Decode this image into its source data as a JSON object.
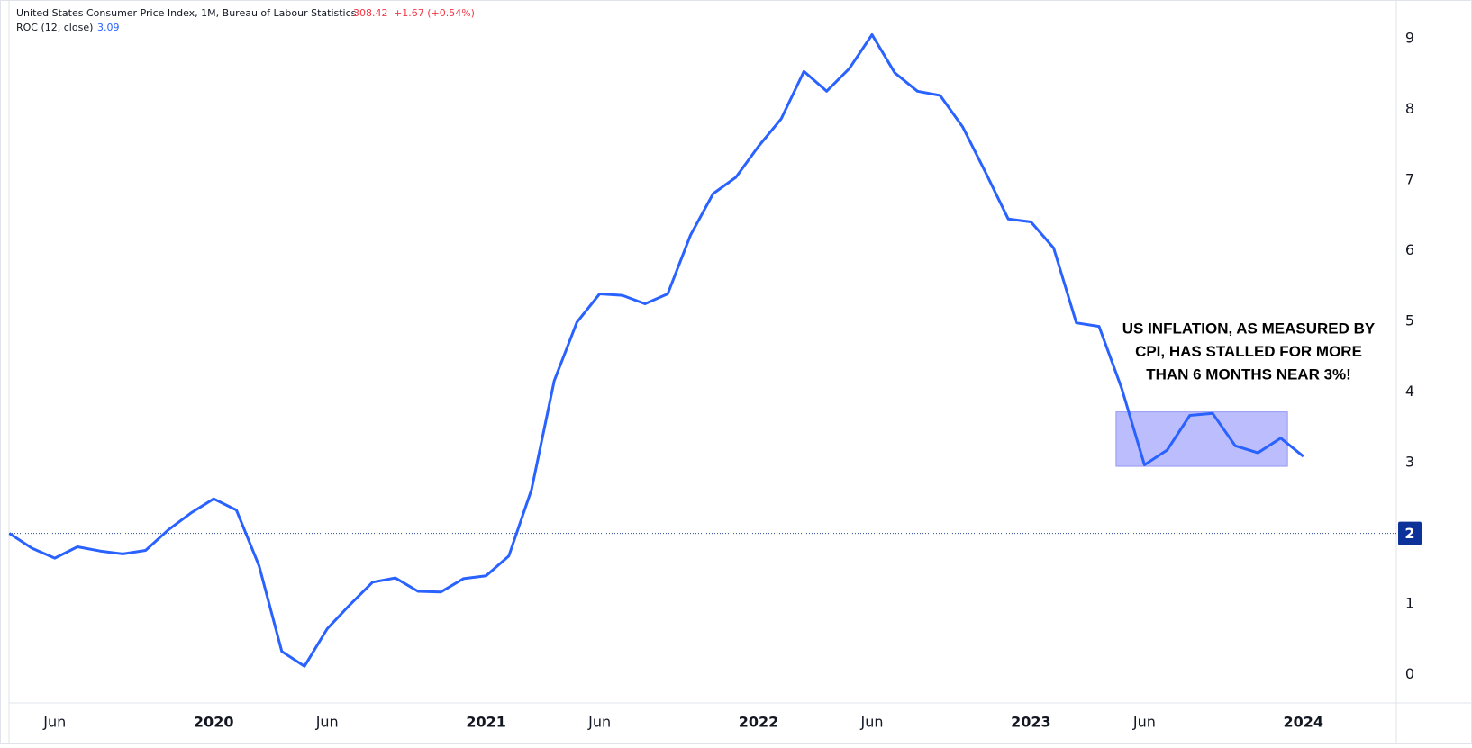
{
  "chart_data": {
    "type": "line",
    "title": "United States Consumer Price Index, 1M, Bureau of Labour Statistics",
    "last_price": "308.42",
    "price_change": "+1.67 (+0.54%)",
    "indicator": "ROC (12, close)",
    "indicator_value": "3.09",
    "annotation": [
      "US INFLATION, AS MEASURED BY",
      "CPI, HAS STALLED FOR MORE",
      "THAN 6 MONTHS NEAR 3%!"
    ],
    "categories": [
      null,
      null,
      "Jun",
      null,
      null,
      null,
      null,
      null,
      null,
      "2020",
      null,
      null,
      null,
      null,
      "Jun",
      null,
      null,
      null,
      null,
      null,
      null,
      "2021",
      null,
      null,
      null,
      null,
      "Jun",
      null,
      null,
      null,
      null,
      null,
      null,
      "2022",
      null,
      null,
      null,
      null,
      "Jun",
      null,
      null,
      null,
      null,
      null,
      null,
      "2023",
      null,
      null,
      null,
      null,
      "Jun",
      null,
      null,
      null,
      null,
      null,
      null,
      "2024"
    ],
    "values": [
      2.0,
      1.79,
      1.65,
      1.81,
      1.75,
      1.71,
      1.76,
      2.05,
      2.29,
      2.49,
      2.33,
      1.54,
      0.33,
      0.12,
      0.65,
      0.99,
      1.31,
      1.37,
      1.18,
      1.17,
      1.36,
      1.4,
      1.68,
      2.62,
      4.16,
      4.99,
      5.39,
      5.37,
      5.25,
      5.39,
      6.22,
      6.81,
      7.04,
      7.48,
      7.87,
      8.54,
      8.26,
      8.58,
      9.06,
      8.52,
      8.26,
      8.2,
      7.75,
      7.11,
      6.45,
      6.41,
      6.04,
      4.98,
      4.93,
      4.05,
      2.97,
      3.18,
      3.67,
      3.7,
      3.24,
      3.14,
      3.35,
      3.09
    ],
    "color": "#2962ff",
    "ylim": [
      -0.4,
      9.55
    ],
    "yticks": [
      0,
      1,
      2,
      3,
      4,
      5,
      6,
      7,
      8,
      9
    ],
    "hline": 2,
    "highlight_y": [
      2.95,
      3.72
    ],
    "grid": false
  }
}
